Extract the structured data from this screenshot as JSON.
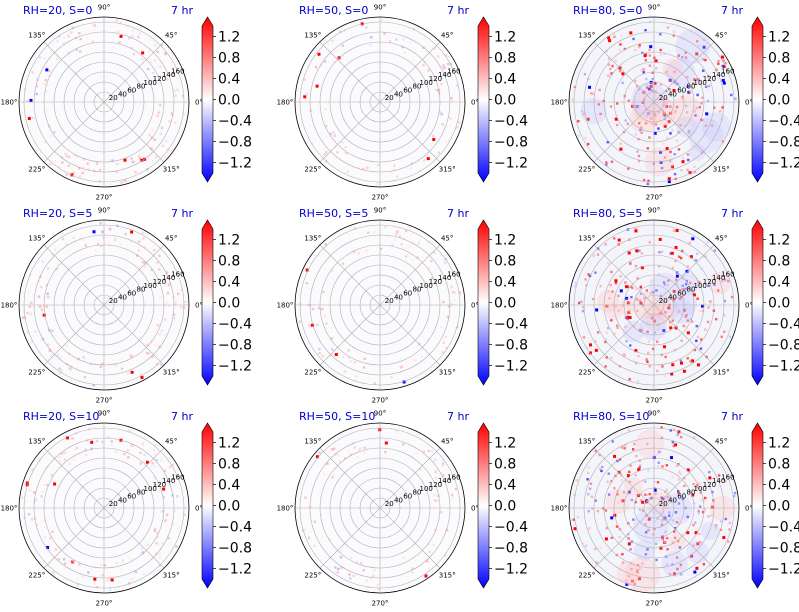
{
  "figure": {
    "time_label": "7 hr",
    "colormap": "bwr",
    "angle_labels": [
      "0°",
      "45°",
      "90°",
      "135°",
      "180°",
      "225°",
      "270°",
      "315°"
    ],
    "radial_labels": [
      "20",
      "40",
      "60",
      "80",
      "100",
      "120",
      "140",
      "160"
    ],
    "colorbar_ticks": [
      "1.2",
      "0.8",
      "0.4",
      "0.0",
      "−0.4",
      "−0.8",
      "−1.2"
    ]
  },
  "chart_data": [
    {
      "type": "heatmap",
      "projection": "polar",
      "title": "RH=20, S=0",
      "time": "7 hr",
      "rlim": [
        0,
        170
      ],
      "clim": [
        -1.4,
        1.4
      ]
    },
    {
      "type": "heatmap",
      "projection": "polar",
      "title": "RH=50, S=0",
      "time": "7 hr",
      "rlim": [
        0,
        170
      ],
      "clim": [
        -1.4,
        1.4
      ]
    },
    {
      "type": "heatmap",
      "projection": "polar",
      "title": "RH=80, S=0",
      "time": "7 hr",
      "rlim": [
        0,
        170
      ],
      "clim": [
        -1.4,
        1.4
      ]
    },
    {
      "type": "heatmap",
      "projection": "polar",
      "title": "RH=20, S=5",
      "time": "7 hr",
      "rlim": [
        0,
        170
      ],
      "clim": [
        -1.4,
        1.4
      ]
    },
    {
      "type": "heatmap",
      "projection": "polar",
      "title": "RH=50, S=5",
      "time": "7 hr",
      "rlim": [
        0,
        170
      ],
      "clim": [
        -1.4,
        1.4
      ]
    },
    {
      "type": "heatmap",
      "projection": "polar",
      "title": "RH=80, S=5",
      "time": "7 hr",
      "rlim": [
        0,
        170
      ],
      "clim": [
        -1.4,
        1.4
      ]
    },
    {
      "type": "heatmap",
      "projection": "polar",
      "title": "RH=20, S=10",
      "time": "7 hr",
      "rlim": [
        0,
        170
      ],
      "clim": [
        -1.4,
        1.4
      ]
    },
    {
      "type": "heatmap",
      "projection": "polar",
      "title": "RH=50, S=10",
      "time": "7 hr",
      "rlim": [
        0,
        170
      ],
      "clim": [
        -1.4,
        1.4
      ]
    },
    {
      "type": "heatmap",
      "projection": "polar",
      "title": "RH=80, S=10",
      "time": "7 hr",
      "rlim": [
        0,
        170
      ],
      "clim": [
        -1.4,
        1.4
      ]
    }
  ]
}
